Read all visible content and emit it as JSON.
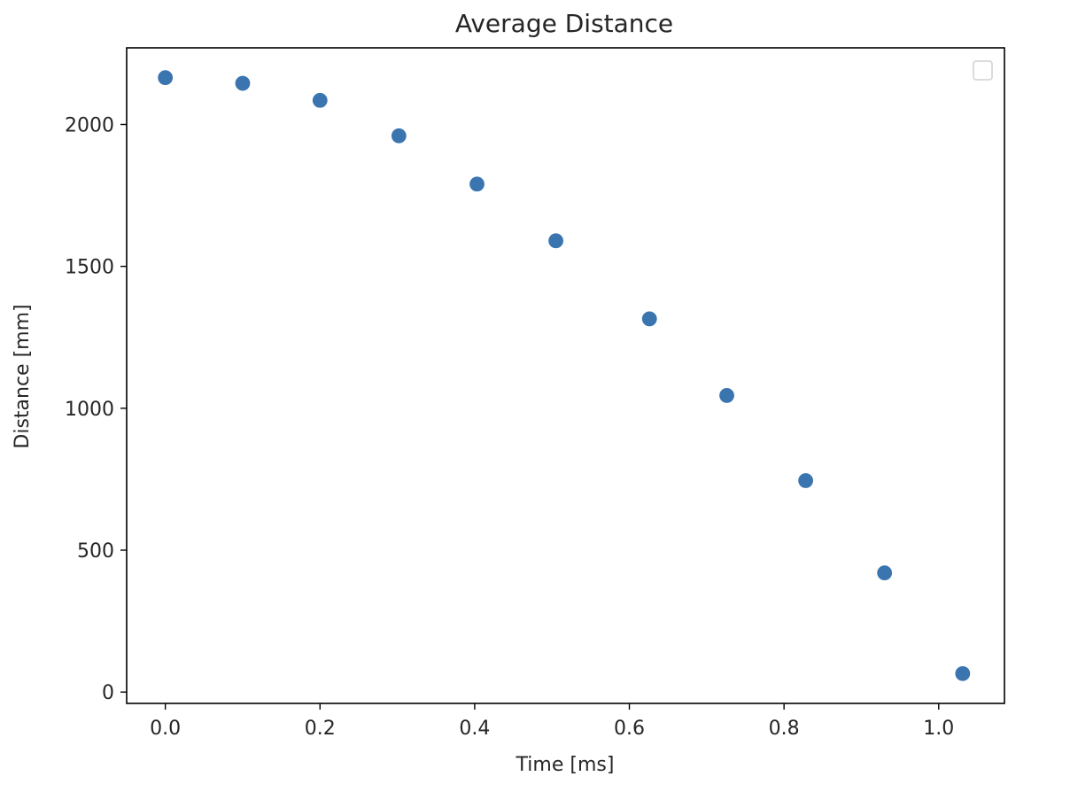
{
  "chart_data": {
    "type": "scatter",
    "title": "Average Distance",
    "xlabel": "Time [ms]",
    "ylabel": "Distance [mm]",
    "xlim": [
      -0.05,
      1.085
    ],
    "ylim": [
      -40,
      2270
    ],
    "xticks": [
      0.0,
      0.2,
      0.4,
      0.6,
      0.8,
      1.0
    ],
    "xtick_labels": [
      "0.0",
      "0.2",
      "0.4",
      "0.6",
      "0.8",
      "1.0"
    ],
    "yticks": [
      0,
      500,
      1000,
      1500,
      2000
    ],
    "ytick_labels": [
      "0",
      "500",
      "1000",
      "1500",
      "2000"
    ],
    "grid": false,
    "legend": "top-right (empty)",
    "series": [
      {
        "color": "#3a75b0",
        "x": [
          0.0,
          0.1,
          0.2,
          0.302,
          0.403,
          0.505,
          0.626,
          0.726,
          0.828,
          0.93,
          1.031
        ],
        "y": [
          2165,
          2145,
          2085,
          1960,
          1790,
          1590,
          1315,
          1045,
          745,
          420,
          65
        ]
      }
    ]
  }
}
